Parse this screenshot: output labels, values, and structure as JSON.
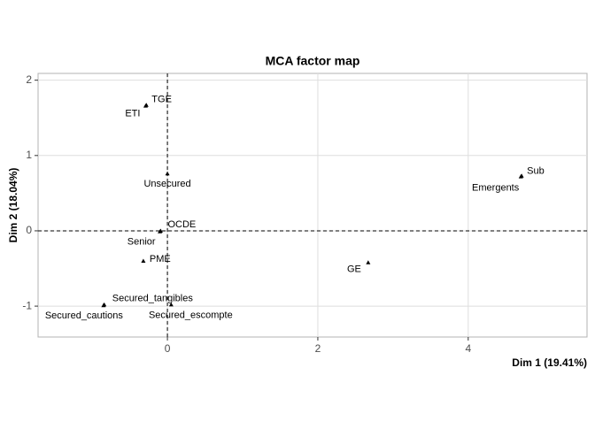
{
  "chart_data": {
    "type": "scatter",
    "title": "MCA factor map",
    "x_label": "Dim 1 (19.41%)",
    "y_label": "Dim 2 (18.04%)",
    "labels": [
      "TGE",
      "ETI",
      "Unsecured",
      "Sub",
      "Emergents",
      "OCDE",
      "Senior",
      "PME",
      "GE",
      "Secured_tangibles",
      "Secured_cautions",
      "Secured_escompte"
    ],
    "x": [
      -0.28,
      -0.29,
      0,
      4.71,
      4.7,
      -0.09,
      -0.1,
      -0.32,
      2.67,
      -0.84,
      -0.85,
      0.05
    ],
    "values": [
      1.67,
      1.66,
      0.76,
      0.73,
      0.72,
      0,
      -0.01,
      -0.4,
      -0.42,
      -0.98,
      -0.99,
      -0.98
    ],
    "color": "#000000",
    "xlim": [
      -1.72,
      5.58
    ],
    "ylim": [
      -1.41,
      2.09
    ],
    "xticks": [
      0,
      2,
      4
    ],
    "yticks": [
      -1,
      0,
      1,
      2
    ],
    "grid": true
  }
}
